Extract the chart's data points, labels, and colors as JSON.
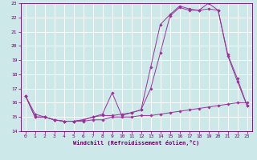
{
  "xlabel": "Windchill (Refroidissement éolien,°C)",
  "bg_color": "#cce8e8",
  "grid_color": "#ffffff",
  "line_color": "#993399",
  "xlim": [
    -0.5,
    23.5
  ],
  "ylim": [
    14,
    23
  ],
  "xticks": [
    0,
    1,
    2,
    3,
    4,
    5,
    6,
    7,
    8,
    9,
    10,
    11,
    12,
    13,
    14,
    15,
    16,
    17,
    18,
    19,
    20,
    21,
    22,
    23
  ],
  "yticks": [
    14,
    15,
    16,
    17,
    18,
    19,
    20,
    21,
    22,
    23
  ],
  "line1_x": [
    0,
    1,
    2,
    3,
    4,
    5,
    6,
    7,
    8,
    9,
    10,
    11,
    12,
    13,
    14,
    15,
    16,
    17,
    18,
    19,
    20,
    21,
    22,
    23
  ],
  "line1_y": [
    16.5,
    15.2,
    15.0,
    14.8,
    14.7,
    14.7,
    14.7,
    14.8,
    14.8,
    15.0,
    15.0,
    15.0,
    15.1,
    15.1,
    15.2,
    15.3,
    15.4,
    15.5,
    15.6,
    15.7,
    15.8,
    15.9,
    16.0,
    16.0
  ],
  "line2_x": [
    0,
    1,
    2,
    3,
    4,
    5,
    6,
    7,
    8,
    9,
    10,
    11,
    12,
    13,
    14,
    15,
    16,
    17,
    18,
    19,
    20,
    21,
    22,
    23
  ],
  "line2_y": [
    16.5,
    15.0,
    15.0,
    14.8,
    14.7,
    14.7,
    14.8,
    15.0,
    15.2,
    16.7,
    15.1,
    15.3,
    15.5,
    18.5,
    21.5,
    22.2,
    22.8,
    22.6,
    22.5,
    23.0,
    22.5,
    19.4,
    17.7,
    15.8
  ],
  "line3_x": [
    0,
    1,
    2,
    3,
    4,
    5,
    6,
    7,
    8,
    9,
    10,
    11,
    12,
    13,
    14,
    15,
    16,
    17,
    18,
    19,
    20,
    21,
    22,
    23
  ],
  "line3_y": [
    16.5,
    15.0,
    15.0,
    14.8,
    14.7,
    14.7,
    14.8,
    15.0,
    15.1,
    15.1,
    15.2,
    15.3,
    15.5,
    17.0,
    19.5,
    22.1,
    22.7,
    22.5,
    22.5,
    22.6,
    22.5,
    19.3,
    17.5,
    15.8
  ]
}
